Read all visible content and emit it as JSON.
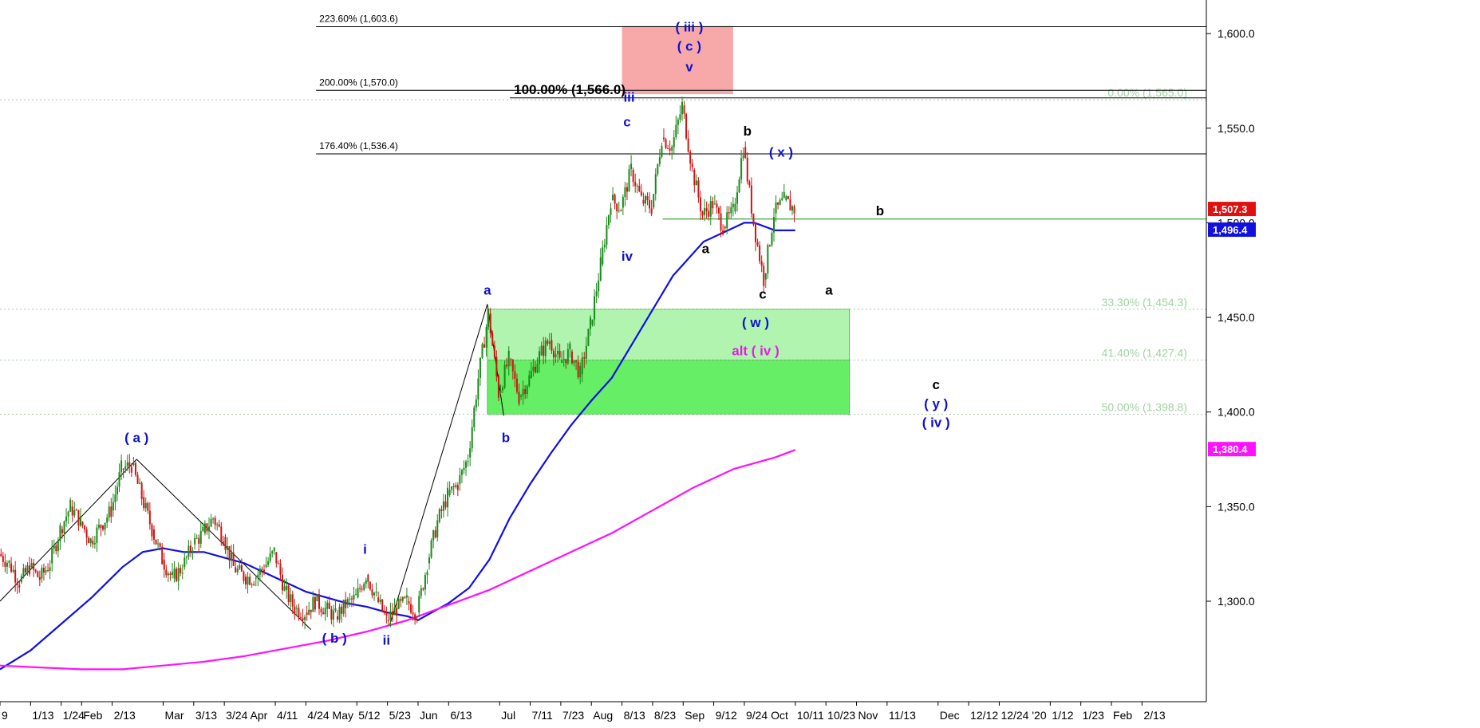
{
  "chart_data": {
    "type": "line",
    "title": "",
    "xlabel": "",
    "ylabel": "",
    "ylim": [
      1237,
      1614
    ],
    "y_ticks": [
      {
        "value": 1300,
        "label": "1,300.0"
      },
      {
        "value": 1350,
        "label": "1,350.0"
      },
      {
        "value": 1400,
        "label": "1,400.0"
      },
      {
        "value": 1450,
        "label": "1,450.0"
      },
      {
        "value": 1500,
        "label": "1,500.0"
      },
      {
        "value": 1550,
        "label": "1,550.0"
      },
      {
        "value": 1600,
        "label": "1,600.0"
      }
    ],
    "x_ticks": [
      {
        "label": "9",
        "i": 0
      },
      {
        "label": "1/13",
        "i": 3
      },
      {
        "label": "1/24",
        "i": 6
      },
      {
        "label": "Feb",
        "i": 8
      },
      {
        "label": "2/13",
        "i": 11
      },
      {
        "label": "Mar",
        "i": 16
      },
      {
        "label": "3/13",
        "i": 19
      },
      {
        "label": "3/24 Apr",
        "i": 22
      },
      {
        "label": "4/11",
        "i": 27
      },
      {
        "label": "4/24 May",
        "i": 30
      },
      {
        "label": "5/12",
        "i": 35
      },
      {
        "label": "5/23",
        "i": 38
      },
      {
        "label": "Jun",
        "i": 41
      },
      {
        "label": "6/13",
        "i": 44
      },
      {
        "label": "Jul",
        "i": 49
      },
      {
        "label": "7/11",
        "i": 52
      },
      {
        "label": "7/23",
        "i": 55
      },
      {
        "label": "Aug",
        "i": 58
      },
      {
        "label": "8/13",
        "i": 61
      },
      {
        "label": "8/23",
        "i": 64
      },
      {
        "label": "Sep",
        "i": 67
      },
      {
        "label": "9/12",
        "i": 70
      },
      {
        "label": "9/24 Oct",
        "i": 73
      },
      {
        "label": "10/11",
        "i": 78
      },
      {
        "label": "10/23",
        "i": 81
      },
      {
        "label": "Nov",
        "i": 84
      },
      {
        "label": "11/13",
        "i": 87
      },
      {
        "label": "Dec",
        "i": 92
      },
      {
        "label": "12/12",
        "i": 95
      },
      {
        "label": "12/24 '20",
        "i": 98
      },
      {
        "label": "1/12",
        "i": 103
      },
      {
        "label": "1/23",
        "i": 106
      },
      {
        "label": "Feb",
        "i": 109
      },
      {
        "label": "2/13",
        "i": 112
      }
    ],
    "price_path": [
      [
        0,
        1325
      ],
      [
        1,
        1320
      ],
      [
        2,
        1310
      ],
      [
        3,
        1318
      ],
      [
        4,
        1312
      ],
      [
        5,
        1320
      ],
      [
        6,
        1338
      ],
      [
        7,
        1350
      ],
      [
        8,
        1342
      ],
      [
        9,
        1332
      ],
      [
        10,
        1340
      ],
      [
        11,
        1348
      ],
      [
        12,
        1370
      ],
      [
        13,
        1372
      ],
      [
        14,
        1355
      ],
      [
        15,
        1338
      ],
      [
        16,
        1322
      ],
      [
        17,
        1312
      ],
      [
        18,
        1318
      ],
      [
        19,
        1330
      ],
      [
        20,
        1336
      ],
      [
        21,
        1344
      ],
      [
        22,
        1334
      ],
      [
        23,
        1318
      ],
      [
        24,
        1313
      ],
      [
        25,
        1312
      ],
      [
        26,
        1318
      ],
      [
        27,
        1326
      ],
      [
        28,
        1306
      ],
      [
        29,
        1296
      ],
      [
        30,
        1294
      ],
      [
        31,
        1300
      ],
      [
        32,
        1296
      ],
      [
        33,
        1292
      ],
      [
        34,
        1298
      ],
      [
        35,
        1302
      ],
      [
        36,
        1314
      ],
      [
        37,
        1302
      ],
      [
        38,
        1290
      ],
      [
        39,
        1296
      ],
      [
        40,
        1300
      ],
      [
        41,
        1294
      ],
      [
        42,
        1320
      ],
      [
        43,
        1342
      ],
      [
        44,
        1356
      ],
      [
        45,
        1362
      ],
      [
        46,
        1376
      ],
      [
        47,
        1418
      ],
      [
        48,
        1452
      ],
      [
        49,
        1410
      ],
      [
        50,
        1428
      ],
      [
        51,
        1408
      ],
      [
        52,
        1418
      ],
      [
        53,
        1430
      ],
      [
        54,
        1438
      ],
      [
        55,
        1426
      ],
      [
        56,
        1432
      ],
      [
        57,
        1420
      ],
      [
        58,
        1446
      ],
      [
        59,
        1478
      ],
      [
        60,
        1512
      ],
      [
        61,
        1508
      ],
      [
        62,
        1528
      ],
      [
        63,
        1512
      ],
      [
        64,
        1508
      ],
      [
        65,
        1545
      ],
      [
        66,
        1540
      ],
      [
        67,
        1562
      ],
      [
        68,
        1528
      ],
      [
        69,
        1504
      ],
      [
        70,
        1510
      ],
      [
        71,
        1498
      ],
      [
        72,
        1506
      ],
      [
        73,
        1540
      ],
      [
        74,
        1500
      ],
      [
        75,
        1470
      ],
      [
        76,
        1505
      ],
      [
        77,
        1512
      ],
      [
        78,
        1507
      ]
    ],
    "series": [
      {
        "name": "",
        "color": "#1010e0",
        "points": [
          [
            0,
            1264
          ],
          [
            3,
            1274
          ],
          [
            6,
            1288
          ],
          [
            9,
            1302
          ],
          [
            12,
            1318
          ],
          [
            14,
            1326
          ],
          [
            16,
            1328
          ],
          [
            18,
            1326
          ],
          [
            20,
            1326
          ],
          [
            22,
            1323
          ],
          [
            24,
            1320
          ],
          [
            26,
            1315
          ],
          [
            28,
            1310
          ],
          [
            30,
            1305
          ],
          [
            32,
            1302
          ],
          [
            34,
            1299
          ],
          [
            36,
            1297
          ],
          [
            38,
            1294
          ],
          [
            40,
            1292
          ],
          [
            41,
            1290
          ],
          [
            42,
            1293
          ],
          [
            44,
            1299
          ],
          [
            46,
            1307
          ],
          [
            48,
            1322
          ],
          [
            50,
            1344
          ],
          [
            52,
            1362
          ],
          [
            54,
            1378
          ],
          [
            56,
            1393
          ],
          [
            58,
            1406
          ],
          [
            60,
            1418
          ],
          [
            62,
            1436
          ],
          [
            64,
            1454
          ],
          [
            66,
            1472
          ],
          [
            67,
            1478
          ],
          [
            69,
            1490
          ],
          [
            71,
            1495
          ],
          [
            73,
            1500
          ],
          [
            74,
            1500
          ],
          [
            76,
            1496
          ],
          [
            78,
            1496
          ]
        ]
      },
      {
        "name": "",
        "color": "#ff10ff",
        "points": [
          [
            0,
            1266
          ],
          [
            4,
            1265
          ],
          [
            8,
            1264
          ],
          [
            12,
            1264
          ],
          [
            16,
            1266
          ],
          [
            20,
            1268
          ],
          [
            24,
            1271
          ],
          [
            28,
            1275
          ],
          [
            32,
            1279
          ],
          [
            36,
            1284
          ],
          [
            40,
            1290
          ],
          [
            44,
            1298
          ],
          [
            48,
            1306
          ],
          [
            52,
            1316
          ],
          [
            56,
            1326
          ],
          [
            60,
            1336
          ],
          [
            64,
            1348
          ],
          [
            68,
            1360
          ],
          [
            72,
            1370
          ],
          [
            76,
            1376
          ],
          [
            78,
            1380
          ]
        ]
      }
    ],
    "fib_levels": [
      {
        "label": "223.60% (1,603.6)",
        "value": 1603.6
      },
      {
        "label": "200.00% (1,570.0)",
        "value": 1570.0
      },
      {
        "label": "176.40% (1,536.4)",
        "value": 1536.4
      }
    ],
    "projection_line": {
      "label": "100.00% (1,566.0)",
      "value": 1566.0
    },
    "retracement_levels": [
      {
        "label": "0.00% (1,565.0)",
        "value": 1565.0
      },
      {
        "label": "33.30% (1,454.3)",
        "value": 1454.3
      },
      {
        "label": "41.40% (1,427.4)",
        "value": 1427.4
      },
      {
        "label": "50.00% (1,398.8)",
        "value": 1398.8
      }
    ],
    "horizontal_line": {
      "value": 1502
    },
    "price_badges": [
      {
        "label": "1,507.3",
        "value": 1507.3,
        "color": "#e01010"
      },
      {
        "label": "1,496.4",
        "value": 1496.4,
        "color": "#1010e0"
      },
      {
        "label": "1,380.4",
        "value": 1380.4,
        "color": "#ff10ff"
      }
    ],
    "wave_labels": [
      {
        "text": "( a )",
        "i": 13.4,
        "v": 1384,
        "color": "blue"
      },
      {
        "text": "( b )",
        "i": 32.8,
        "v": 1278,
        "color": "blue"
      },
      {
        "text": "i",
        "i": 35.8,
        "v": 1325,
        "color": "blue"
      },
      {
        "text": "ii",
        "i": 37.9,
        "v": 1277,
        "color": "blue"
      },
      {
        "text": "a",
        "i": 47.8,
        "v": 1462,
        "color": "blue"
      },
      {
        "text": "b",
        "i": 49.6,
        "v": 1384,
        "color": "blue"
      },
      {
        "text": "iii",
        "i": 61.7,
        "v": 1564,
        "color": "blue"
      },
      {
        "text": "c",
        "i": 61.5,
        "v": 1551,
        "color": "blue"
      },
      {
        "text": "iv",
        "i": 61.5,
        "v": 1480,
        "color": "blue"
      },
      {
        "text": "( iii )",
        "i": 67.6,
        "v": 1601,
        "color": "blue"
      },
      {
        "text": "( c )",
        "i": 67.6,
        "v": 1591,
        "color": "blue"
      },
      {
        "text": "v",
        "i": 67.6,
        "v": 1580,
        "color": "blue"
      },
      {
        "text": "b",
        "i": 73.3,
        "v": 1546,
        "color": "black"
      },
      {
        "text": "( x )",
        "i": 76.6,
        "v": 1535,
        "color": "blue"
      },
      {
        "text": "a",
        "i": 69.2,
        "v": 1484,
        "color": "black"
      },
      {
        "text": "c",
        "i": 74.8,
        "v": 1460,
        "color": "black"
      },
      {
        "text": "( w )",
        "i": 74.1,
        "v": 1445,
        "color": "blue"
      },
      {
        "text": "alt ( iv )",
        "i": 74.1,
        "v": 1430,
        "color": "magenta"
      },
      {
        "text": "b",
        "i": 86.3,
        "v": 1504,
        "color": "black"
      },
      {
        "text": "a",
        "i": 81.3,
        "v": 1462,
        "color": "black"
      },
      {
        "text": "c",
        "i": 91.8,
        "v": 1412,
        "color": "black"
      },
      {
        "text": "( y )",
        "i": 91.8,
        "v": 1402,
        "color": "blue"
      },
      {
        "text": "( iv )",
        "i": 91.8,
        "v": 1392,
        "color": "blue"
      }
    ],
    "trend_lines": [
      [
        [
          0,
          1300
        ],
        [
          13.4,
          1375
        ]
      ],
      [
        [
          13.4,
          1375
        ],
        [
          30.5,
          1285
        ]
      ],
      [
        [
          38.2,
          1287
        ],
        [
          47.8,
          1457
        ]
      ],
      [
        [
          47.8,
          1457
        ],
        [
          49.4,
          1398
        ]
      ]
    ],
    "boxes": [
      {
        "i0": 61.0,
        "i1": 71.9,
        "v0": 1568,
        "v1": 1604,
        "color": "#f7a8a8"
      },
      {
        "i0": 47.8,
        "i1": 83.3,
        "v0": 1427.4,
        "v1": 1454.3,
        "color": "#b0f4b0"
      },
      {
        "i0": 47.8,
        "i1": 83.3,
        "v0": 1398.8,
        "v1": 1427.4,
        "color": "#66ee66"
      }
    ]
  }
}
